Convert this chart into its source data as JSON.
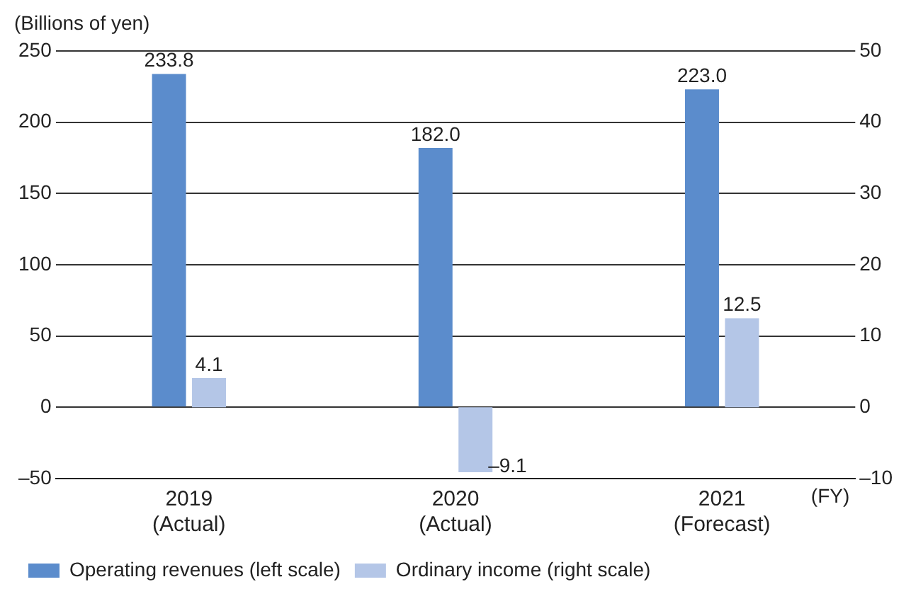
{
  "chart_data": {
    "type": "bar",
    "ylabel": "(Billions of yen)",
    "xlabel": "(FY)",
    "categories": [
      "2019\n(Actual)",
      "2020\n(Actual)",
      "2021\n(Forecast)"
    ],
    "series": [
      {
        "name": "Operating revenues (left scale)",
        "color": "#5b8ccc",
        "values": [
          233.8,
          182.0,
          223.0
        ],
        "value_labels": [
          "233.8",
          "182.0",
          "223.0"
        ]
      },
      {
        "name": "Ordinary income (right scale)",
        "color": "#b4c6e7",
        "values": [
          4.1,
          -9.1,
          12.5
        ],
        "axis": "y2",
        "value_labels": [
          "4.1",
          "–9.1",
          "12.5"
        ]
      }
    ],
    "ylim": [
      -50,
      250
    ],
    "yticks": [
      {
        "value": -50,
        "label": "–50"
      },
      0,
      50,
      100,
      150,
      200,
      250
    ],
    "y2lim": [
      -10,
      50
    ],
    "y2ticks": [
      {
        "value": -10,
        "label": "–10"
      },
      0,
      10,
      20,
      30,
      40,
      50
    ],
    "grid": "y",
    "legend": "bottom left"
  }
}
